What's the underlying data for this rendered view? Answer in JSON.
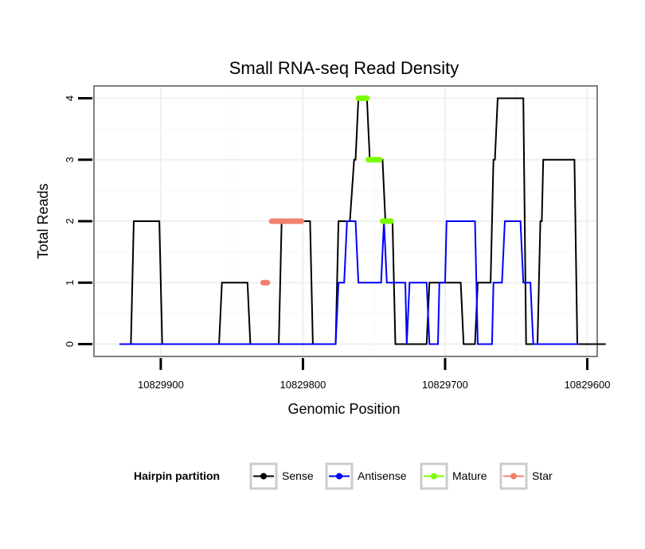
{
  "chart_data": {
    "type": "line",
    "title": "Small RNA-seq Read Density",
    "xlabel": "Genomic Position",
    "ylabel": "Total Reads",
    "xlim": [
      10829947,
      10829593
    ],
    "ylim": [
      -0.2,
      4.2
    ],
    "x_reversed": true,
    "x_ticks": [
      {
        "value": 10829900,
        "label": "10829900"
      },
      {
        "value": 10829800,
        "label": "10829800"
      },
      {
        "value": 10829700,
        "label": "10829700"
      },
      {
        "value": 10829600,
        "label": "10829600"
      }
    ],
    "y_ticks": [
      {
        "value": 0,
        "label": "0"
      },
      {
        "value": 1,
        "label": "1"
      },
      {
        "value": 2,
        "label": "2"
      },
      {
        "value": 3,
        "label": "3"
      },
      {
        "value": 4,
        "label": "4"
      }
    ],
    "series": [
      {
        "name": "Sense",
        "color": "#000000",
        "points": [
          [
            10829929,
            0
          ],
          [
            10829921,
            0
          ],
          [
            10829919,
            2
          ],
          [
            10829901,
            2
          ],
          [
            10829899,
            0
          ],
          [
            10829859,
            0
          ],
          [
            10829857,
            1
          ],
          [
            10829839,
            1
          ],
          [
            10829837,
            0
          ],
          [
            10829817,
            0
          ],
          [
            10829815,
            2
          ],
          [
            10829795,
            2
          ],
          [
            10829793,
            0
          ],
          [
            10829777,
            0
          ],
          [
            10829775,
            2
          ],
          [
            10829767,
            2
          ],
          [
            10829764,
            3
          ],
          [
            10829763,
            3
          ],
          [
            10829761,
            4
          ],
          [
            10829755,
            4
          ],
          [
            10829753,
            3
          ],
          [
            10829744,
            3
          ],
          [
            10829742,
            2
          ],
          [
            10829737,
            2
          ],
          [
            10829735,
            0
          ],
          [
            10829713,
            0
          ],
          [
            10829711,
            1
          ],
          [
            10829689,
            1
          ],
          [
            10829687,
            0
          ],
          [
            10829679,
            0
          ],
          [
            10829677,
            1
          ],
          [
            10829668,
            1
          ],
          [
            10829666,
            3
          ],
          [
            10829665,
            3
          ],
          [
            10829663,
            4
          ],
          [
            10829645,
            4
          ],
          [
            10829643,
            0
          ],
          [
            10829635,
            0
          ],
          [
            10829633,
            2
          ],
          [
            10829632,
            2
          ],
          [
            10829631,
            3
          ],
          [
            10829609,
            3
          ],
          [
            10829607,
            0
          ],
          [
            10829587,
            0
          ]
        ]
      },
      {
        "name": "Antisense",
        "color": "#0000ff",
        "points": [
          [
            10829929,
            0
          ],
          [
            10829777,
            0
          ],
          [
            10829775,
            1
          ],
          [
            10829771,
            1
          ],
          [
            10829769,
            2
          ],
          [
            10829763,
            2
          ],
          [
            10829761,
            1
          ],
          [
            10829745,
            1
          ],
          [
            10829743,
            2
          ],
          [
            10829741,
            1
          ],
          [
            10829728,
            1
          ],
          [
            10829727,
            0
          ],
          [
            10829725,
            1
          ],
          [
            10829713,
            1
          ],
          [
            10829711,
            0
          ],
          [
            10829705,
            0
          ],
          [
            10829704,
            1
          ],
          [
            10829700,
            1
          ],
          [
            10829699,
            2
          ],
          [
            10829679,
            2
          ],
          [
            10829677,
            0
          ],
          [
            10829667,
            0
          ],
          [
            10829666,
            1
          ],
          [
            10829660,
            1
          ],
          [
            10829658,
            2
          ],
          [
            10829647,
            2
          ],
          [
            10829645,
            1
          ],
          [
            10829640,
            1
          ],
          [
            10829638,
            0
          ],
          [
            10829607,
            0
          ]
        ]
      },
      {
        "name": "Mature",
        "color": "#7cfc00",
        "segments": [
          {
            "x": [
              10829761,
              10829755
            ],
            "y": 4
          },
          {
            "x": [
              10829754,
              10829746
            ],
            "y": 3
          },
          {
            "x": [
              10829744,
              10829738
            ],
            "y": 2
          }
        ]
      },
      {
        "name": "Star",
        "color": "#f08070",
        "segments": [
          {
            "x": [
              10829828,
              10829825
            ],
            "y": 1
          },
          {
            "x": [
              10829822,
              10829801
            ],
            "y": 2
          }
        ]
      }
    ],
    "legend": {
      "title": "Hairpin partition",
      "position": "bottom",
      "entries": [
        {
          "label": "Sense",
          "color": "#000000"
        },
        {
          "label": "Antisense",
          "color": "#0000ff"
        },
        {
          "label": "Mature",
          "color": "#7cfc00"
        },
        {
          "label": "Star",
          "color": "#f08070"
        }
      ]
    }
  }
}
